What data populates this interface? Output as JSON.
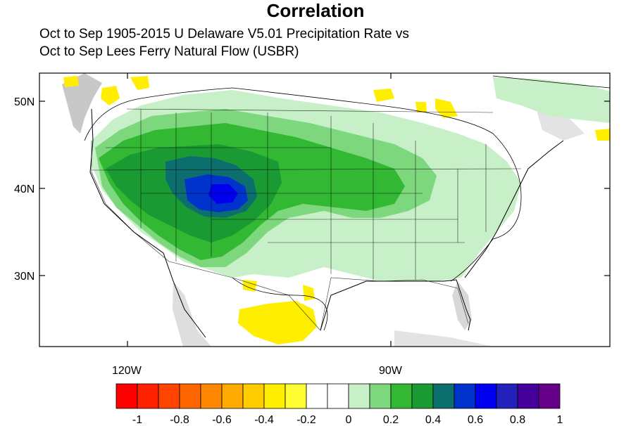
{
  "title": "Correlation",
  "subtitle_line1": "Oct to Sep 1905-2015 U Delaware V5.01 Precipitation Rate vs",
  "subtitle_line2": "Oct to Sep Lees Ferry Natural Flow (USBR)",
  "map": {
    "lat_labels": [
      "50N",
      "40N",
      "30N"
    ],
    "lon_labels": [
      "120W",
      "90W"
    ],
    "land_default_color": "#ffffff",
    "ocean_shading_color": "#c8c8c8"
  },
  "colorbar": {
    "colors": [
      "#ff0000",
      "#ff2200",
      "#ff4400",
      "#ff6600",
      "#ff8800",
      "#ffaa00",
      "#ffcc00",
      "#ffee00",
      "#ffff33",
      "#ffffff",
      "#ffffff",
      "#c8f0c8",
      "#7dd87d",
      "#33b833",
      "#1a9a33",
      "#0d6e6e",
      "#0033cc",
      "#0000ee",
      "#2222bb",
      "#440099",
      "#660088"
    ],
    "tick_labels": [
      "-1",
      "-0.8",
      "-0.6",
      "-0.4",
      "-0.2",
      "0",
      "0.2",
      "0.4",
      "0.6",
      "0.8",
      "1"
    ]
  }
}
